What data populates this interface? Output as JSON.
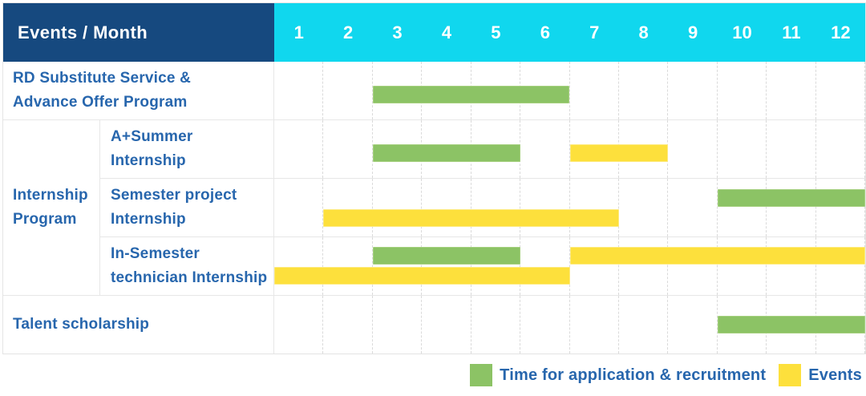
{
  "title": "Events / Month",
  "months": [
    "1",
    "2",
    "3",
    "4",
    "5",
    "6",
    "7",
    "8",
    "9",
    "10",
    "11",
    "12"
  ],
  "palette": {
    "header_bg": "#16497f",
    "month_header_bg": "#10d7ee",
    "header_text": "#ffffff",
    "label_text": "#2766ad",
    "application_color": "#8cc365",
    "events_color": "#fde03c"
  },
  "legend": [
    {
      "key": "application",
      "label": "Time for application & recruitment"
    },
    {
      "key": "events",
      "label": "Events"
    }
  ],
  "rows": [
    {
      "kind": "single",
      "label": "RD Substitute Service & Advance Offer Program",
      "label_lines": [
        "RD Substitute Service &",
        "Advance Offer Program"
      ],
      "lanes": [
        [
          {
            "type": "application",
            "start_month": 3,
            "end_month": 6
          }
        ]
      ]
    },
    {
      "kind": "group",
      "group_label": "Internship Program",
      "group_label_lines": [
        "Internship",
        "Program"
      ],
      "children": [
        {
          "label": "A+Summer Internship",
          "label_lines": [
            "A+Summer",
            "Internship"
          ],
          "lanes": [
            [
              {
                "type": "application",
                "start_month": 3,
                "end_month": 5
              },
              {
                "type": "events",
                "start_month": 7,
                "end_month": 8
              }
            ]
          ]
        },
        {
          "label": "Semester project Internship",
          "label_lines": [
            "Semester project",
            "Internship"
          ],
          "lanes": [
            [
              {
                "type": "application",
                "start_month": 10,
                "end_month": 12
              }
            ],
            [
              {
                "type": "events",
                "start_month": 2,
                "end_month": 7
              }
            ]
          ]
        },
        {
          "label": "In-Semester technician Internship",
          "label_lines": [
            "In-Semester",
            "technician Internship"
          ],
          "lanes": [
            [
              {
                "type": "application",
                "start_month": 3,
                "end_month": 5
              },
              {
                "type": "events",
                "start_month": 7,
                "end_month": 12
              }
            ],
            [
              {
                "type": "events",
                "start_month": 1,
                "end_month": 6
              }
            ]
          ]
        }
      ]
    },
    {
      "kind": "single",
      "label": "Talent scholarship",
      "label_lines": [
        "Talent scholarship"
      ],
      "lanes": [
        [
          {
            "type": "application",
            "start_month": 10,
            "end_month": 12
          }
        ]
      ]
    }
  ],
  "chart_data": {
    "type": "gantt",
    "title": "Events / Month",
    "x": {
      "label": "Month",
      "ticks": [
        1,
        2,
        3,
        4,
        5,
        6,
        7,
        8,
        9,
        10,
        11,
        12
      ],
      "range": [
        1,
        12
      ]
    },
    "grid": true,
    "legend_position": "bottom-right",
    "row_groups": [
      {
        "group": "Internship Program",
        "rows": [
          "A+Summer Internship",
          "Semester project Internship",
          "In-Semester technician Internship"
        ]
      }
    ],
    "series": [
      {
        "name": "Time for application & recruitment",
        "color": "#8cc365",
        "bars": [
          {
            "row": "RD Substitute Service & Advance Offer Program",
            "start_month": 3,
            "end_month": 6
          },
          {
            "row": "A+Summer Internship",
            "start_month": 3,
            "end_month": 5
          },
          {
            "row": "Semester project Internship",
            "start_month": 10,
            "end_month": 12
          },
          {
            "row": "In-Semester technician Internship",
            "start_month": 3,
            "end_month": 5
          },
          {
            "row": "Talent scholarship",
            "start_month": 10,
            "end_month": 12
          }
        ]
      },
      {
        "name": "Events",
        "color": "#fde03c",
        "bars": [
          {
            "row": "A+Summer Internship",
            "start_month": 7,
            "end_month": 8
          },
          {
            "row": "Semester project Internship",
            "start_month": 2,
            "end_month": 7
          },
          {
            "row": "In-Semester technician Internship",
            "start_month": 7,
            "end_month": 12
          },
          {
            "row": "In-Semester technician Internship",
            "start_month": 1,
            "end_month": 6
          }
        ]
      }
    ]
  }
}
